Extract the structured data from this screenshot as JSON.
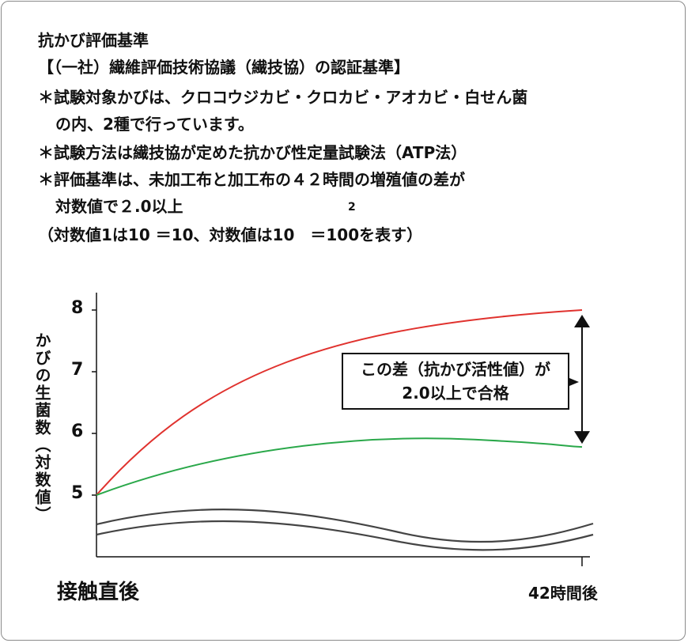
{
  "text": {
    "title": "抗かび評価基準",
    "line1": "【（一社）繊維評価技術協議（繊技協）の認証基準】",
    "line2": "＊試験対象かびは、クロコウジカビ・クロカビ・アオカビ・白せん菌",
    "line3": "の内、2種で行っています。",
    "line4": "＊試験方法は繊技協が定めた抗かび性定量試験法（ATP法）",
    "line5": "＊評価基準は、未加工布と加工布の４２時間の増殖値の差が",
    "line6": "対数値で２.0以上",
    "line7": "（対数値1は10 ＝10、対数値は10　＝100を表す）",
    "sup": "2"
  },
  "chart_data": {
    "type": "line",
    "xlabel": "",
    "ylabel": "かびの生菌数（対数値）",
    "categories": [
      "接触直後",
      "42時間後"
    ],
    "ylim": [
      4.2,
      8.3
    ],
    "yticks": [
      "8",
      "7",
      "6",
      "5"
    ],
    "series": [
      {
        "color": "#e0322e",
        "values": [
          5.0,
          8.0
        ]
      },
      {
        "color": "#2aa84a",
        "values": [
          5.0,
          5.78
        ]
      }
    ],
    "annotation": "この差（抗かび活性値）が\n2.0以上で合格"
  },
  "colors": {
    "red": "#e0322e",
    "green": "#2aa84a",
    "axis": "#111111",
    "wave": "#444444"
  }
}
